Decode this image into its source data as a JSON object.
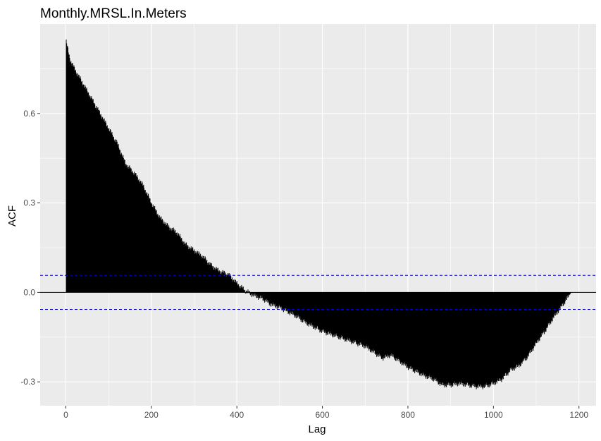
{
  "chart_data": {
    "type": "bar",
    "title": "Monthly.MRSL.In.Meters",
    "xlabel": "Lag",
    "ylabel": "ACF",
    "xlim": [
      -60,
      1240
    ],
    "ylim": [
      -0.38,
      0.9
    ],
    "x_ticks": [
      0,
      200,
      400,
      600,
      800,
      1000,
      1200
    ],
    "x_tick_labels": [
      "0",
      "200",
      "400",
      "600",
      "800",
      "1000",
      "1200"
    ],
    "y_ticks": [
      -0.3,
      0.0,
      0.3,
      0.6
    ],
    "y_tick_labels": [
      "-0.3",
      "0.0",
      "0.3",
      "0.6"
    ],
    "confidence_bound": 0.057,
    "lag_max": 1182,
    "grid": true,
    "series": [
      {
        "x": [
          1,
          10,
          20,
          40,
          60,
          80,
          100,
          120,
          140,
          160,
          180,
          200,
          220,
          240,
          260,
          280,
          300,
          320,
          340,
          360,
          380,
          400,
          420,
          440,
          460,
          480,
          500,
          520,
          540,
          560,
          580,
          600,
          620,
          640,
          660,
          680,
          700,
          720,
          740,
          760,
          780,
          800,
          820,
          840,
          860,
          880,
          900,
          920,
          940,
          960,
          980,
          1000,
          1020,
          1040,
          1060,
          1080,
          1100,
          1120,
          1140,
          1160,
          1182
        ],
        "values": [
          0.84,
          0.78,
          0.75,
          0.7,
          0.65,
          0.6,
          0.55,
          0.5,
          0.43,
          0.4,
          0.36,
          0.3,
          0.25,
          0.22,
          0.2,
          0.16,
          0.14,
          0.12,
          0.09,
          0.07,
          0.06,
          0.03,
          0.005,
          -0.01,
          -0.02,
          -0.04,
          -0.05,
          -0.065,
          -0.08,
          -0.1,
          -0.115,
          -0.13,
          -0.14,
          -0.15,
          -0.16,
          -0.17,
          -0.18,
          -0.2,
          -0.22,
          -0.21,
          -0.23,
          -0.25,
          -0.265,
          -0.28,
          -0.29,
          -0.31,
          -0.31,
          -0.305,
          -0.31,
          -0.315,
          -0.315,
          -0.305,
          -0.29,
          -0.26,
          -0.245,
          -0.215,
          -0.17,
          -0.13,
          -0.085,
          -0.045,
          0.0
        ]
      }
    ]
  }
}
